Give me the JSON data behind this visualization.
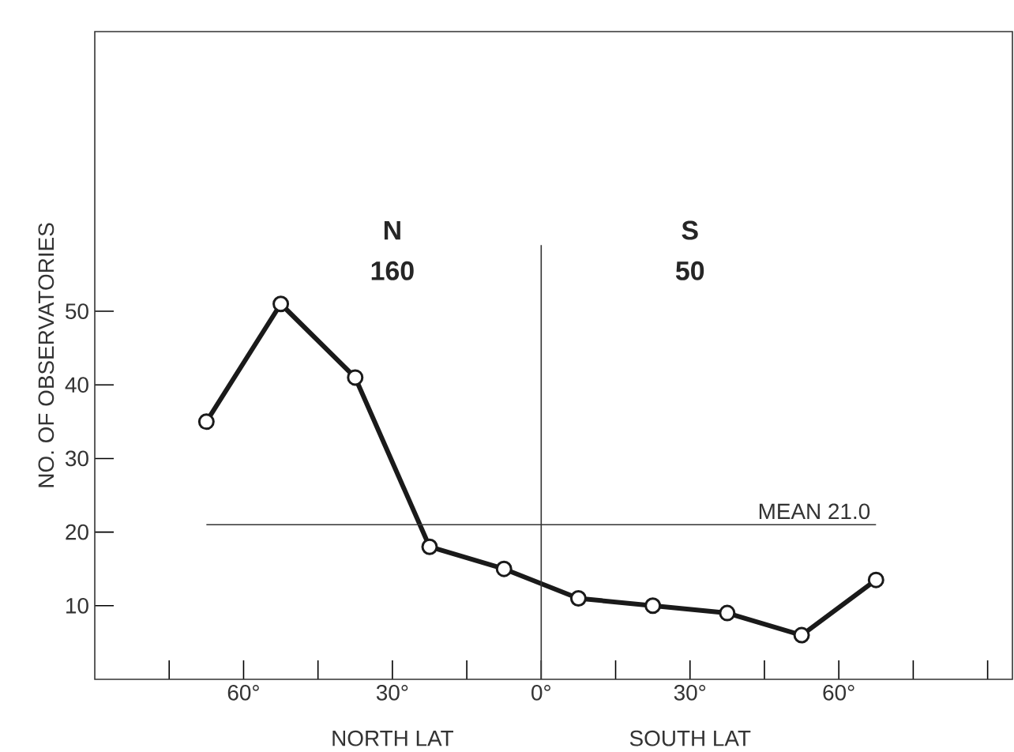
{
  "chart_data": {
    "type": "line",
    "ylabel": "NO. OF OBSERVATORIES",
    "x": [
      -67.5,
      -52.5,
      -37.5,
      -22.5,
      -7.5,
      7.5,
      22.5,
      37.5,
      52.5,
      67.5
    ],
    "series": [
      {
        "color": "#1a1a1a",
        "values": [
          35,
          51,
          41,
          18,
          15,
          11,
          10,
          9,
          6,
          13.5
        ]
      }
    ],
    "marker": "circle",
    "line_style": "solid",
    "xlim": [
      -90,
      95
    ],
    "ylim": [
      0,
      88
    ],
    "xticks": [
      {
        "value": -75,
        "label": null
      },
      {
        "value": -60,
        "label": "60°"
      },
      {
        "value": -45,
        "label": null
      },
      {
        "value": -30,
        "label": "30°"
      },
      {
        "value": -15,
        "label": null
      },
      {
        "value": 0,
        "label": "0°"
      },
      {
        "value": 15,
        "label": null
      },
      {
        "value": 30,
        "label": "30°"
      },
      {
        "value": 45,
        "label": null
      },
      {
        "value": 60,
        "label": "60°"
      },
      {
        "value": 75,
        "label": null
      },
      {
        "value": 90,
        "label": null
      }
    ],
    "yticks": [
      10,
      20,
      30,
      40,
      50
    ],
    "ref_lines": [
      {
        "axis": "y",
        "value": 21.0,
        "label": "MEAN 21.0"
      },
      {
        "axis": "x",
        "value": 0
      }
    ],
    "annotations": [
      "N",
      "160",
      "S",
      "50",
      "NORTH LAT",
      "SOUTH LAT"
    ]
  }
}
